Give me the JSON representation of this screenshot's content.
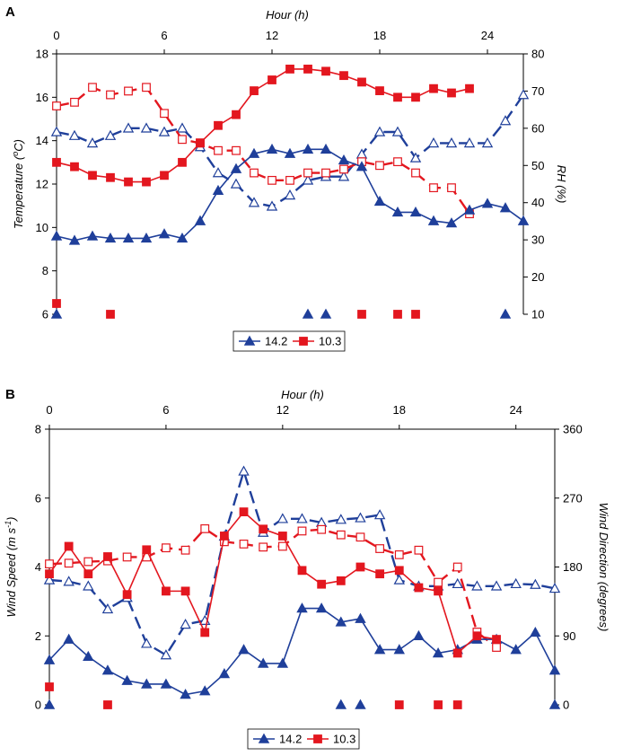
{
  "colors": {
    "blue": "#1f3f9a",
    "red": "#e3171f",
    "axis": "#000000"
  },
  "chart_data": [
    {
      "panel": "A",
      "type": "line",
      "title": "",
      "top_label": "Hour (h)",
      "ylabel_left": "Temperature (",
      "ylabel_left_deg": "o",
      "ylabel_left_end": "C)",
      "ylabel_right": "RH (%)",
      "xlim": [
        0,
        26
      ],
      "ylim_left": [
        6,
        18
      ],
      "ylim_right": [
        10,
        80
      ],
      "x_ticks": [
        0,
        6,
        12,
        18,
        24
      ],
      "x_tick_labels": [
        "0",
        "6",
        "12",
        "18",
        "24"
      ],
      "y_left_ticks": [
        6,
        8,
        10,
        12,
        14,
        16,
        18
      ],
      "y_left_tick_labels": [
        "6",
        "8",
        "10",
        "12",
        "14",
        "16",
        "18"
      ],
      "y_right_ticks": [
        10,
        20,
        30,
        40,
        50,
        60,
        70,
        80
      ],
      "y_right_tick_labels": [
        "10",
        "20",
        "30",
        "40",
        "50",
        "60",
        "70",
        "80"
      ],
      "legend": [
        "14.2",
        "10.3"
      ],
      "series": [
        {
          "name": "14.2",
          "variable": "temperature",
          "axis": "left",
          "color": "blue",
          "marker": "triangle",
          "filled": true,
          "dashed": false,
          "x": [
            0,
            1,
            2,
            3,
            4,
            5,
            6,
            7,
            8,
            9,
            10,
            11,
            12,
            13,
            14,
            15,
            16,
            17,
            18,
            19,
            20,
            21,
            22,
            23,
            24,
            25,
            26
          ],
          "y": [
            9.6,
            9.4,
            9.6,
            9.5,
            9.5,
            9.5,
            9.7,
            9.5,
            10.3,
            11.7,
            12.7,
            13.4,
            13.6,
            13.4,
            13.6,
            13.6,
            13.1,
            12.8,
            11.2,
            10.7,
            10.7,
            10.3,
            10.2,
            10.8,
            11.1,
            10.9,
            10.3
          ]
        },
        {
          "name": "14.2",
          "variable": "RH",
          "axis": "right",
          "color": "blue",
          "marker": "triangle",
          "filled": false,
          "dashed": true,
          "x": [
            0,
            1,
            2,
            3,
            4,
            5,
            6,
            7,
            8,
            9,
            10,
            11,
            12,
            13,
            14,
            15,
            16,
            17,
            18,
            19,
            20,
            21,
            22,
            23,
            24,
            25,
            26
          ],
          "y": [
            59,
            58,
            56,
            58,
            60,
            60,
            59,
            60,
            55,
            48,
            45,
            40,
            39,
            42,
            46,
            47,
            47,
            53,
            59,
            59,
            52,
            56,
            56,
            56,
            56,
            62,
            69
          ]
        },
        {
          "name": "10.3",
          "variable": "temperature",
          "axis": "left",
          "color": "red",
          "marker": "square",
          "filled": true,
          "dashed": false,
          "x": [
            0,
            1,
            2,
            3,
            4,
            5,
            6,
            7,
            8,
            9,
            10,
            11,
            12,
            13,
            14,
            15,
            16,
            17,
            18,
            19,
            20,
            21,
            22,
            23
          ],
          "y": [
            13.0,
            12.8,
            12.4,
            12.3,
            12.1,
            12.1,
            12.4,
            13.0,
            13.9,
            14.7,
            15.2,
            16.3,
            16.8,
            17.3,
            17.3,
            17.2,
            17.0,
            16.7,
            16.3,
            16.0,
            16.0,
            16.4,
            16.2,
            16.4
          ]
        },
        {
          "name": "10.3",
          "variable": "RH",
          "axis": "right",
          "color": "red",
          "marker": "square",
          "filled": false,
          "dashed": true,
          "x": [
            0,
            1,
            2,
            3,
            4,
            5,
            6,
            7,
            8,
            9,
            10,
            11,
            12,
            13,
            14,
            15,
            16,
            17,
            18,
            19,
            20,
            21,
            22,
            23
          ],
          "y": [
            66,
            67,
            71,
            69,
            70,
            71,
            64,
            57,
            56,
            54,
            54,
            48,
            46,
            46,
            48,
            48,
            49,
            51,
            50,
            51,
            48,
            44,
            44,
            37
          ]
        }
      ],
      "markers_bottom": [
        {
          "series": "14.2",
          "marker": "triangle",
          "x": [
            0,
            14,
            15,
            25
          ]
        },
        {
          "series": "10.3",
          "marker": "square",
          "x": [
            0,
            3,
            17,
            19,
            20
          ]
        }
      ]
    },
    {
      "panel": "B",
      "type": "line",
      "title": "",
      "top_label": "Hour (h)",
      "ylabel_left": "Wind Speed (m s",
      "ylabel_left_sup": "-1",
      "ylabel_left_end": ")",
      "ylabel_right": "Wind Direction (degrees)",
      "xlim": [
        0,
        26
      ],
      "ylim_left": [
        0,
        8
      ],
      "ylim_right": [
        0,
        360
      ],
      "x_ticks": [
        0,
        6,
        12,
        18,
        24
      ],
      "x_tick_labels": [
        "0",
        "6",
        "12",
        "18",
        "24"
      ],
      "y_left_ticks": [
        0,
        2,
        4,
        6,
        8
      ],
      "y_left_tick_labels": [
        "0",
        "2",
        "4",
        "6",
        "8"
      ],
      "y_right_ticks": [
        0,
        90,
        180,
        270,
        360
      ],
      "y_right_tick_labels": [
        "0",
        "90",
        "180",
        "270",
        "360"
      ],
      "legend": [
        "14.2",
        "10.3"
      ],
      "series": [
        {
          "name": "14.2",
          "variable": "wind speed",
          "axis": "left",
          "color": "blue",
          "marker": "triangle",
          "filled": true,
          "dashed": false,
          "x": [
            0,
            1,
            2,
            3,
            4,
            5,
            6,
            7,
            8,
            9,
            10,
            11,
            12,
            13,
            14,
            15,
            16,
            17,
            18,
            19,
            20,
            21,
            22,
            23,
            24,
            25,
            26
          ],
          "y": [
            1.3,
            1.9,
            1.4,
            1.0,
            0.7,
            0.6,
            0.6,
            0.3,
            0.4,
            0.9,
            1.6,
            1.2,
            1.2,
            2.8,
            2.8,
            2.4,
            2.5,
            1.6,
            1.6,
            2.0,
            1.5,
            1.6,
            1.9,
            1.9,
            1.6,
            2.1,
            1.0
          ]
        },
        {
          "name": "14.2",
          "variable": "wind direction",
          "axis": "right",
          "color": "blue",
          "marker": "triangle",
          "filled": false,
          "dashed": true,
          "x": [
            0,
            1,
            2,
            3,
            4,
            5,
            6,
            7,
            8,
            9,
            10,
            11,
            12,
            13,
            14,
            15,
            16,
            17,
            18,
            19,
            20,
            21,
            22,
            23,
            24,
            25,
            26
          ],
          "y": [
            163,
            161,
            155,
            125,
            140,
            80,
            65,
            105,
            110,
            220,
            305,
            225,
            243,
            243,
            238,
            242,
            244,
            248,
            163,
            155,
            155,
            158,
            155,
            155,
            158,
            157,
            152
          ]
        },
        {
          "name": "10.3",
          "variable": "wind speed",
          "axis": "left",
          "color": "red",
          "marker": "square",
          "filled": true,
          "dashed": false,
          "x": [
            0,
            1,
            2,
            3,
            4,
            5,
            6,
            7,
            8,
            9,
            10,
            11,
            12,
            13,
            14,
            15,
            16,
            17,
            18,
            19,
            20,
            21,
            22,
            23
          ],
          "y": [
            3.8,
            4.6,
            3.8,
            4.3,
            3.2,
            4.5,
            3.3,
            3.3,
            2.1,
            4.9,
            5.6,
            5.1,
            4.9,
            3.9,
            3.5,
            3.6,
            4.0,
            3.8,
            3.9,
            3.4,
            3.3,
            1.5,
            2.0,
            1.9
          ]
        },
        {
          "name": "10.3",
          "variable": "wind direction",
          "axis": "right",
          "color": "red",
          "marker": "square",
          "filled": false,
          "dashed": true,
          "x": [
            0,
            1,
            2,
            3,
            4,
            5,
            6,
            7,
            8,
            9,
            10,
            11,
            12,
            13,
            14,
            15,
            16,
            17,
            18,
            19,
            20,
            21,
            22,
            23
          ],
          "y": [
            184,
            185,
            187,
            188,
            193,
            193,
            205,
            202,
            230,
            213,
            210,
            206,
            207,
            227,
            229,
            222,
            219,
            204,
            196,
            202,
            160,
            180,
            95,
            75
          ]
        }
      ],
      "markers_bottom": [
        {
          "series": "14.2",
          "marker": "triangle",
          "x": [
            0,
            15,
            16,
            26
          ]
        },
        {
          "series": "10.3",
          "marker": "square",
          "x": [
            0,
            3,
            18,
            20,
            21
          ]
        }
      ]
    }
  ]
}
